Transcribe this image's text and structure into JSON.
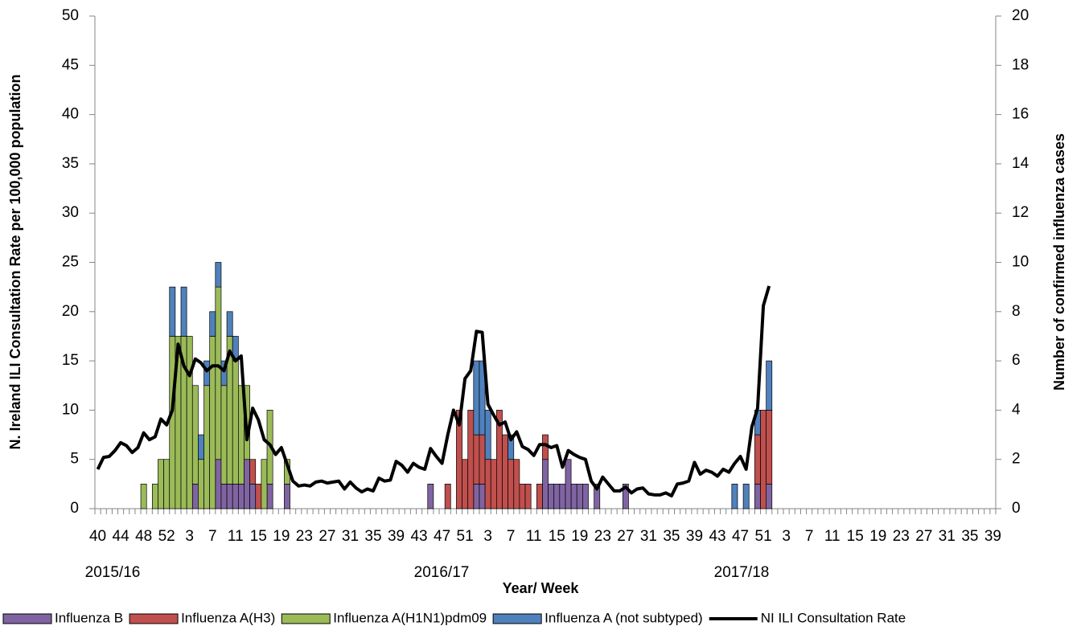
{
  "chart_data": {
    "type": "bar_line",
    "x_label": "Year/ Week",
    "y_label": "N. Ireland ILI Consultation Rate per 100,000 population",
    "y2_label": "Number of confirmed influenza cases",
    "x_group_labels": [
      "2015/16",
      "2016/17",
      "2017/18"
    ],
    "categories": [
      "40",
      null,
      null,
      null,
      "44",
      null,
      null,
      null,
      "48",
      null,
      null,
      null,
      "52",
      null,
      null,
      null,
      "3",
      null,
      null,
      null,
      "7",
      null,
      null,
      null,
      "11",
      null,
      null,
      null,
      "15",
      null,
      null,
      null,
      "19",
      null,
      null,
      null,
      "23",
      null,
      null,
      null,
      "27",
      null,
      null,
      null,
      "31",
      null,
      null,
      null,
      "35",
      null,
      null,
      null,
      "39",
      null,
      null,
      null,
      "43",
      null,
      null,
      null,
      "47",
      null,
      null,
      null,
      "51",
      null,
      null,
      null,
      "3",
      null,
      null,
      null,
      "7",
      null,
      null,
      null,
      "11",
      null,
      null,
      null,
      "15",
      null,
      null,
      null,
      "19",
      null,
      null,
      null,
      "23",
      null,
      null,
      null,
      "27",
      null,
      null,
      null,
      "31",
      null,
      null,
      null,
      "35",
      null,
      null,
      null,
      "39",
      null,
      null,
      null,
      "43",
      null,
      null,
      null,
      "47",
      null,
      null,
      null,
      "51",
      null,
      null,
      null,
      "3",
      null,
      null,
      null,
      "7",
      null,
      null,
      null,
      "11",
      null,
      null,
      null,
      "15",
      null,
      null,
      null,
      "19",
      null,
      null,
      null,
      "23",
      null,
      null,
      null,
      "27",
      null,
      null,
      null,
      "31",
      null,
      null,
      null,
      "35",
      null,
      null,
      null,
      "39"
    ],
    "ylim": [
      0,
      50
    ],
    "yticks": [
      0,
      5,
      10,
      15,
      20,
      25,
      30,
      35,
      40,
      45,
      50
    ],
    "y2lim": [
      0,
      20
    ],
    "y2ticks": [
      0,
      2,
      4,
      6,
      8,
      10,
      12,
      14,
      16,
      18,
      20
    ],
    "legend": "bottom",
    "series": [
      {
        "name": "Influenza B",
        "type": "bar",
        "axis": "y2",
        "color": "#8064a2",
        "values": [
          0,
          0,
          0,
          0,
          0,
          0,
          0,
          0,
          0,
          0,
          0,
          0,
          0,
          0,
          0,
          0,
          0,
          1,
          0,
          0,
          0,
          2,
          1,
          1,
          1,
          1,
          2,
          1,
          0,
          0,
          1,
          0,
          0,
          1,
          0,
          0,
          0,
          0,
          0,
          0,
          0,
          0,
          0,
          0,
          0,
          0,
          0,
          0,
          0,
          0,
          0,
          0,
          0,
          0,
          0,
          0,
          0,
          0,
          1,
          0,
          0,
          0,
          0,
          0,
          0,
          0,
          1,
          1,
          0,
          0,
          0,
          0,
          0,
          0,
          0,
          0,
          0,
          0,
          2,
          1,
          1,
          1,
          2,
          1,
          1,
          1,
          0,
          1,
          0,
          0,
          0,
          0,
          1,
          0,
          0,
          0,
          0,
          0,
          0,
          0,
          0,
          0,
          0,
          0,
          0,
          0,
          0,
          0,
          0,
          0,
          0,
          0,
          0,
          0,
          0,
          1,
          0,
          1,
          0,
          0,
          0,
          0,
          0,
          0,
          0,
          0,
          0,
          0,
          0,
          0,
          0,
          0,
          0,
          0,
          0,
          0,
          0,
          0,
          0,
          0,
          0,
          0,
          0,
          0,
          0,
          0,
          0,
          0,
          0,
          0,
          0,
          0,
          0,
          0,
          0,
          0,
          0
        ]
      },
      {
        "name": "Influenza A(H3)",
        "type": "bar",
        "axis": "y2",
        "color": "#c0504d",
        "values": [
          0,
          0,
          0,
          0,
          0,
          0,
          0,
          0,
          0,
          0,
          0,
          0,
          0,
          0,
          0,
          0,
          0,
          0,
          0,
          0,
          0,
          0,
          0,
          0,
          0,
          0,
          0,
          1,
          1,
          0,
          0,
          0,
          0,
          0,
          0,
          0,
          0,
          0,
          0,
          0,
          0,
          0,
          0,
          0,
          0,
          0,
          0,
          0,
          0,
          0,
          0,
          0,
          0,
          0,
          0,
          0,
          0,
          0,
          0,
          0,
          0,
          1,
          0,
          4,
          2,
          4,
          2,
          2,
          2,
          2,
          4,
          3,
          2,
          2,
          1,
          1,
          0,
          1,
          1,
          0,
          0,
          0,
          0,
          0,
          0,
          0,
          0,
          0,
          0,
          0,
          0,
          0,
          0,
          0,
          0,
          0,
          0,
          0,
          0,
          0,
          0,
          0,
          0,
          0,
          0,
          0,
          0,
          0,
          0,
          0,
          0,
          0,
          0,
          0,
          0,
          2,
          4,
          3,
          0,
          0,
          0,
          0,
          0,
          0,
          0,
          0,
          0,
          0,
          0,
          0,
          0,
          0,
          0,
          0,
          0,
          0,
          0,
          0,
          0,
          0,
          0,
          0,
          0,
          0,
          0,
          0,
          0,
          0,
          0,
          0,
          0,
          0,
          0,
          0,
          0,
          0,
          0
        ]
      },
      {
        "name": "Influenza A(H1N1)pdm09",
        "type": "bar",
        "axis": "y2",
        "color": "#9bbb59",
        "values": [
          0,
          0,
          0,
          0,
          0,
          0,
          0,
          0,
          1,
          0,
          1,
          2,
          2,
          7,
          7,
          7,
          7,
          4,
          2,
          5,
          7,
          7,
          4,
          6,
          5,
          4,
          3,
          0,
          0,
          2,
          3,
          0,
          0,
          1,
          0,
          0,
          0,
          0,
          0,
          0,
          0,
          0,
          0,
          0,
          0,
          0,
          0,
          0,
          0,
          0,
          0,
          0,
          0,
          0,
          0,
          0,
          0,
          0,
          0,
          0,
          0,
          0,
          0,
          0,
          0,
          0,
          0,
          0,
          0,
          0,
          0,
          0,
          0,
          0,
          0,
          0,
          0,
          0,
          0,
          0,
          0,
          0,
          0,
          0,
          0,
          0,
          0,
          0,
          0,
          0,
          0,
          0,
          0,
          0,
          0,
          0,
          0,
          0,
          0,
          0,
          0,
          0,
          0,
          0,
          0,
          0,
          0,
          0,
          0,
          0,
          0,
          0,
          0,
          0,
          0,
          0,
          0,
          0,
          0,
          0,
          0,
          0,
          0,
          0,
          0,
          0,
          0,
          0,
          0,
          0,
          0,
          0,
          0,
          0,
          0,
          0,
          0,
          0,
          0,
          0,
          0,
          0,
          0,
          0,
          0,
          0,
          0,
          0,
          0,
          0,
          0,
          0,
          0,
          0,
          0,
          0,
          0
        ]
      },
      {
        "name": "Influenza A (not subtyped)",
        "type": "bar",
        "axis": "y2",
        "color": "#4f81bd",
        "values": [
          0,
          0,
          0,
          0,
          0,
          0,
          0,
          0,
          0,
          0,
          0,
          0,
          0,
          2,
          0,
          2,
          0,
          0,
          1,
          1,
          1,
          1,
          1,
          1,
          1,
          0,
          0,
          0,
          0,
          0,
          0,
          0,
          0,
          0,
          0,
          0,
          0,
          0,
          0,
          0,
          0,
          0,
          0,
          0,
          0,
          0,
          0,
          0,
          0,
          0,
          0,
          0,
          0,
          0,
          0,
          0,
          0,
          0,
          0,
          0,
          0,
          0,
          0,
          0,
          0,
          0,
          3,
          3,
          2,
          0,
          0,
          0,
          1,
          0,
          0,
          0,
          0,
          0,
          0,
          0,
          0,
          0,
          0,
          0,
          0,
          0,
          0,
          0,
          0,
          0,
          0,
          0,
          0,
          0,
          0,
          0,
          0,
          0,
          0,
          0,
          0,
          0,
          0,
          0,
          0,
          0,
          0,
          0,
          0,
          0,
          0,
          1,
          0,
          1,
          0,
          1,
          0,
          2,
          0,
          0,
          0,
          0,
          0,
          0,
          0,
          0,
          0,
          0,
          0,
          0,
          0,
          0,
          0,
          0,
          0,
          0,
          0,
          0,
          0,
          0,
          0,
          0,
          0,
          0,
          0,
          0,
          0,
          0,
          0,
          0,
          0,
          0,
          0,
          0,
          0,
          0,
          0
        ]
      },
      {
        "name": "NI ILI Consultation Rate",
        "type": "line",
        "axis": "y",
        "color": "#000000",
        "values": [
          4,
          5.2,
          5.3,
          5.9,
          6.7,
          6.4,
          5.7,
          6.2,
          7.7,
          7,
          7.3,
          9.1,
          8.5,
          10,
          16.7,
          14.5,
          13.5,
          15.2,
          14.8,
          14,
          14.5,
          14.5,
          14,
          16,
          15,
          15.5,
          7,
          10.2,
          9,
          7,
          6.5,
          5.5,
          6.2,
          4.5,
          2.8,
          2.3,
          2.4,
          2.3,
          2.7,
          2.8,
          2.6,
          2.7,
          2.8,
          2,
          2.7,
          2.1,
          1.7,
          2,
          1.8,
          3.1,
          2.8,
          2.9,
          4.8,
          4.4,
          3.7,
          4.6,
          4.2,
          4,
          6.1,
          5.3,
          4.6,
          7.5,
          10,
          8.5,
          13.2,
          14,
          18,
          17.9,
          10.6,
          9.5,
          8.5,
          8.8,
          7,
          7.8,
          6.3,
          6,
          5.4,
          6.5,
          6.5,
          6.2,
          6.4,
          4.2,
          5.9,
          5.5,
          5.2,
          5,
          2.8,
          2,
          3.2,
          2.5,
          1.8,
          1.8,
          2.2,
          1.6,
          2,
          2.1,
          1.5,
          1.4,
          1.4,
          1.6,
          1.3,
          2.5,
          2.6,
          2.8,
          4.7,
          3.5,
          3.9,
          3.7,
          3.3,
          4,
          3.7,
          4.6,
          5.3,
          4,
          8.3,
          10.2,
          20.6,
          22.6,
          null,
          null,
          null,
          null,
          null,
          null,
          null,
          null,
          null,
          null,
          null,
          null,
          null,
          null,
          null,
          null,
          null,
          null,
          null,
          null,
          null,
          null,
          null,
          null,
          null,
          null,
          null,
          null,
          null,
          null,
          null,
          null,
          null,
          null,
          null,
          null,
          null,
          null,
          null
        ]
      }
    ]
  }
}
